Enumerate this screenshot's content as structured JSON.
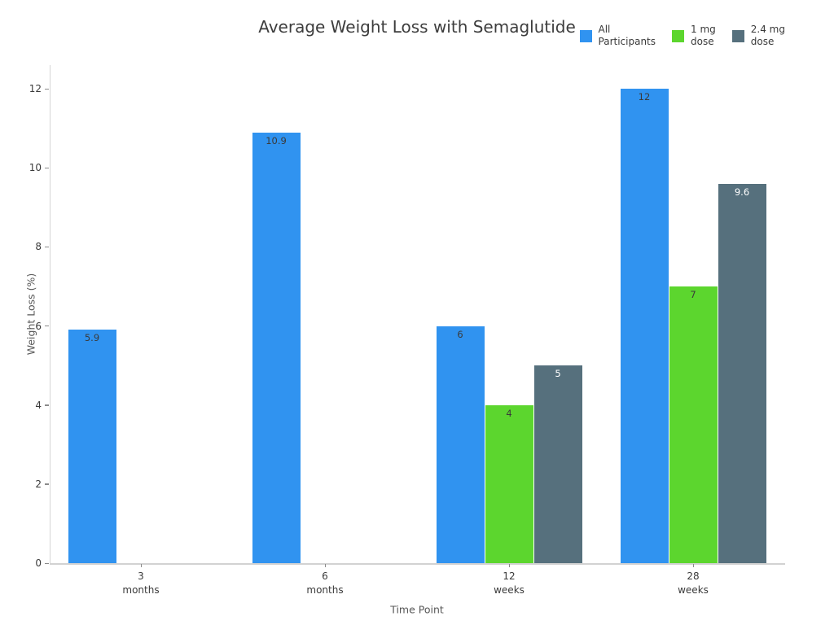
{
  "chart_data": {
    "type": "bar",
    "title": "Average Weight Loss with Semaglutide",
    "xlabel": "Time Point",
    "ylabel": "Weight Loss (%)",
    "categories": [
      [
        "3",
        "months"
      ],
      [
        "6",
        "months"
      ],
      [
        "12",
        "weeks"
      ],
      [
        "28",
        "weeks"
      ]
    ],
    "series": [
      {
        "name": "All Participants",
        "legend_lines": [
          "All",
          "Participants"
        ],
        "color": "#3093F0",
        "label_color": "#3a3a3a",
        "values": [
          5.9,
          10.9,
          6,
          12
        ]
      },
      {
        "name": "1 mg dose",
        "legend_lines": [
          "1 mg",
          "dose"
        ],
        "color": "#5CD62E",
        "label_color": "#3a3a3a",
        "values": [
          null,
          null,
          4,
          7
        ]
      },
      {
        "name": "2.4 mg dose",
        "legend_lines": [
          "2.4 mg",
          "dose"
        ],
        "color": "#56707D",
        "label_color": "#ffffff",
        "values": [
          null,
          null,
          5,
          9.6
        ]
      }
    ],
    "y_ticks": [
      0,
      2,
      4,
      6,
      8,
      10,
      12
    ],
    "ylim": [
      0,
      12.6
    ],
    "grid": false,
    "legend_position": "top-right",
    "background": "#ffffff"
  }
}
